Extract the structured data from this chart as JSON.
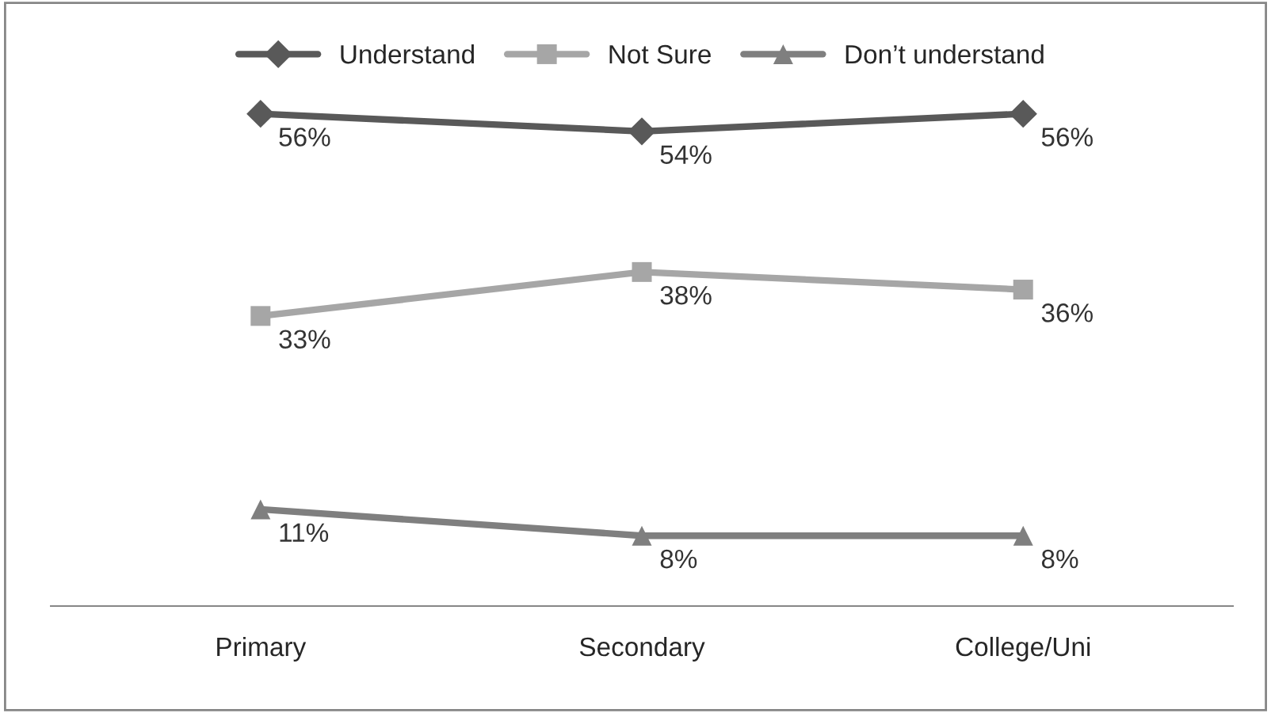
{
  "chart_data": {
    "type": "line",
    "categories": [
      "Primary",
      "Secondary",
      "College/Uni"
    ],
    "series": [
      {
        "name": "Understand",
        "color": "#595959",
        "marker": "diamond",
        "values": [
          56,
          54,
          56
        ],
        "value_labels": [
          "56%",
          "54%",
          "56%"
        ]
      },
      {
        "name": "Not Sure",
        "color": "#a6a6a6",
        "marker": "square",
        "values": [
          33,
          38,
          36
        ],
        "value_labels": [
          "33%",
          "38%",
          "36%"
        ]
      },
      {
        "name": "Don’t understand",
        "color": "#7f7f7f",
        "marker": "triangle",
        "values": [
          11,
          8,
          8
        ],
        "value_labels": [
          "11%",
          "8%",
          "8%"
        ]
      }
    ],
    "tick_labels": "x",
    "grid": false,
    "legend": "top"
  }
}
